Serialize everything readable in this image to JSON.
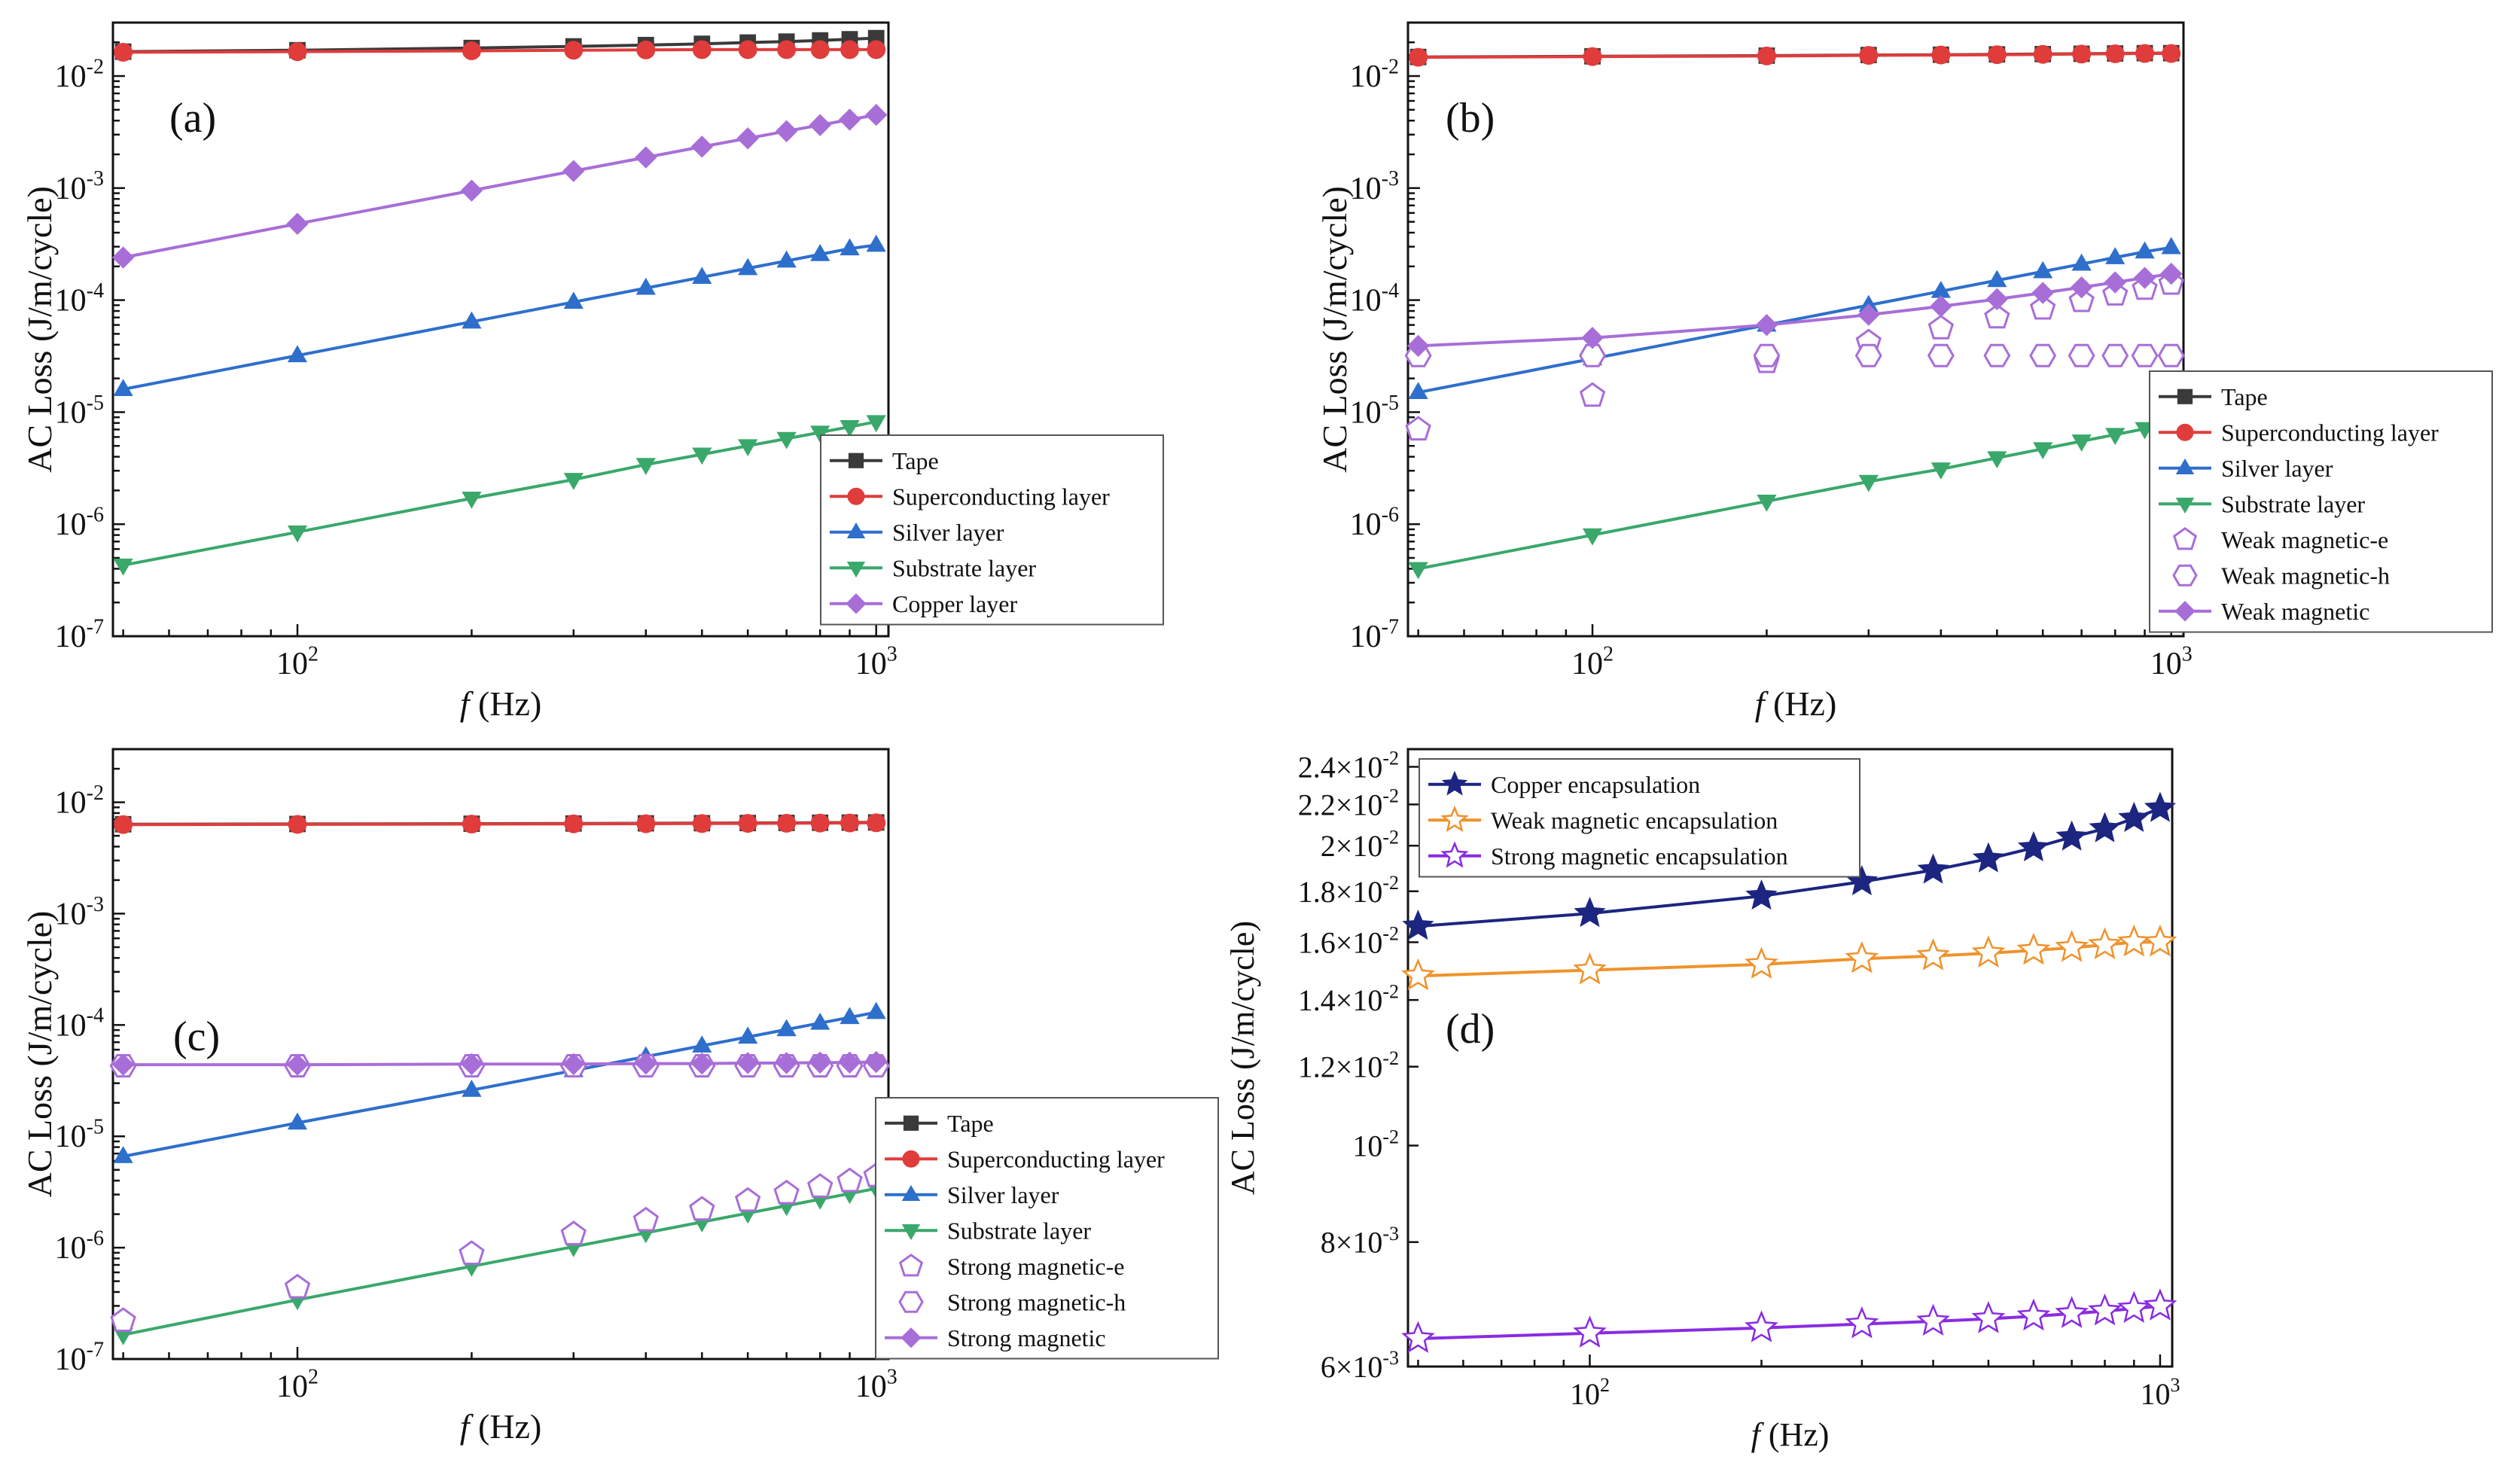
{
  "chart_data": [
    {
      "id": "a",
      "type": "line",
      "panel_label": "(a)",
      "xscale": "log",
      "yscale": "log",
      "xlim": [
        48,
        1050
      ],
      "ylim": [
        1e-07,
        0.03
      ],
      "xlabel_italic": "f",
      "xlabel_rest": " (Hz)",
      "ylabel": "AC Loss (J/m/cycle)",
      "xticks": [
        {
          "v": 100,
          "b": "10",
          "e": "2"
        },
        {
          "v": 1000,
          "b": "10",
          "e": "3"
        }
      ],
      "yticks": [
        {
          "v": 1e-07,
          "b": "10",
          "e": "-7"
        },
        {
          "v": 1e-06,
          "b": "10",
          "e": "-6"
        },
        {
          "v": 1e-05,
          "b": "10",
          "e": "-5"
        },
        {
          "v": 0.0001,
          "b": "10",
          "e": "-4"
        },
        {
          "v": 0.001,
          "b": "10",
          "e": "-3"
        },
        {
          "v": 0.01,
          "b": "10",
          "e": "-2"
        }
      ],
      "legend_position": "lower-right",
      "x": [
        50,
        100,
        200,
        300,
        400,
        500,
        600,
        700,
        800,
        900,
        1000
      ],
      "series": [
        {
          "name": "Tape",
          "color": "#3a3a3a",
          "marker": "square",
          "fill": true,
          "line": true,
          "values": [
            0.0165,
            0.017,
            0.0178,
            0.0184,
            0.0189,
            0.0194,
            0.0199,
            0.0203,
            0.0208,
            0.0213,
            0.0218
          ]
        },
        {
          "name": "Superconducting layer",
          "color": "#e03c3c",
          "marker": "circle",
          "fill": true,
          "line": true,
          "values": [
            0.0163,
            0.0165,
            0.0168,
            0.017,
            0.0171,
            0.0172,
            0.0172,
            0.0172,
            0.0172,
            0.0172,
            0.0172
          ]
        },
        {
          "name": "Silver layer",
          "color": "#2e6fcc",
          "marker": "triangle-up",
          "fill": true,
          "line": true,
          "values": [
            1.6e-05,
            3.2e-05,
            6.4e-05,
            9.6e-05,
            0.000128,
            0.00016,
            0.000192,
            0.000224,
            0.000256,
            0.000288,
            0.00031
          ]
        },
        {
          "name": "Substrate layer",
          "color": "#3aa86b",
          "marker": "triangle-down",
          "fill": true,
          "line": true,
          "values": [
            4.3e-07,
            8.5e-07,
            1.7e-06,
            2.5e-06,
            3.4e-06,
            4.2e-06,
            5e-06,
            5.8e-06,
            6.6e-06,
            7.4e-06,
            8.2e-06
          ]
        },
        {
          "name": "Copper layer",
          "color": "#a86ed8",
          "marker": "diamond",
          "fill": true,
          "line": true,
          "values": [
            0.00024,
            0.00048,
            0.00095,
            0.00142,
            0.00188,
            0.00234,
            0.00278,
            0.00322,
            0.00365,
            0.00408,
            0.0045
          ]
        }
      ]
    },
    {
      "id": "b",
      "type": "line",
      "panel_label": "(b)",
      "xscale": "log",
      "yscale": "log",
      "xlim": [
        48,
        1050
      ],
      "ylim": [
        1e-07,
        0.03
      ],
      "xlabel_italic": "f",
      "xlabel_rest": " (Hz)",
      "ylabel": "AC Loss (J/m/cycle)",
      "xticks": [
        {
          "v": 100,
          "b": "10",
          "e": "2"
        },
        {
          "v": 1000,
          "b": "10",
          "e": "3"
        }
      ],
      "yticks": [
        {
          "v": 1e-07,
          "b": "10",
          "e": "-7"
        },
        {
          "v": 1e-06,
          "b": "10",
          "e": "-6"
        },
        {
          "v": 1e-05,
          "b": "10",
          "e": "-5"
        },
        {
          "v": 0.0001,
          "b": "10",
          "e": "-4"
        },
        {
          "v": 0.001,
          "b": "10",
          "e": "-3"
        },
        {
          "v": 0.01,
          "b": "10",
          "e": "-2"
        }
      ],
      "legend_position": "right",
      "x": [
        50,
        100,
        200,
        300,
        400,
        500,
        600,
        700,
        800,
        900,
        1000
      ],
      "series": [
        {
          "name": "Tape",
          "color": "#3a3a3a",
          "marker": "square",
          "fill": true,
          "line": true,
          "values": [
            0.0148,
            0.015,
            0.0152,
            0.0154,
            0.0155,
            0.0156,
            0.0157,
            0.0158,
            0.0159,
            0.016,
            0.016
          ]
        },
        {
          "name": "Superconducting layer",
          "color": "#e03c3c",
          "marker": "circle",
          "fill": true,
          "line": true,
          "values": [
            0.0147,
            0.0149,
            0.0151,
            0.0153,
            0.0154,
            0.0155,
            0.0156,
            0.0157,
            0.0158,
            0.0159,
            0.0159
          ]
        },
        {
          "name": "Silver layer",
          "color": "#2e6fcc",
          "marker": "triangle-up",
          "fill": true,
          "line": true,
          "values": [
            1.5e-05,
            3e-05,
            6e-05,
            9e-05,
            0.00012,
            0.00015,
            0.00018,
            0.00021,
            0.00024,
            0.00027,
            0.000295
          ]
        },
        {
          "name": "Substrate layer",
          "color": "#3aa86b",
          "marker": "triangle-down",
          "fill": true,
          "line": true,
          "values": [
            4e-07,
            8e-07,
            1.6e-06,
            2.4e-06,
            3.1e-06,
            3.9e-06,
            4.7e-06,
            5.5e-06,
            6.3e-06,
            7.1e-06,
            7.8e-06
          ]
        },
        {
          "name": "Weak magnetic-e",
          "color": "#a86ed8",
          "marker": "pentagon",
          "fill": false,
          "line": false,
          "values": [
            7e-06,
            1.4e-05,
            2.8e-05,
            4.2e-05,
            5.6e-05,
            7e-05,
            8.4e-05,
            9.8e-05,
            0.000112,
            0.000126,
            0.00014
          ]
        },
        {
          "name": "Weak magnetic-h",
          "color": "#a86ed8",
          "marker": "hexagon",
          "fill": false,
          "line": false,
          "values": [
            3.2e-05,
            3.2e-05,
            3.2e-05,
            3.2e-05,
            3.2e-05,
            3.2e-05,
            3.2e-05,
            3.2e-05,
            3.2e-05,
            3.2e-05,
            3.2e-05
          ]
        },
        {
          "name": "Weak magnetic",
          "color": "#a86ed8",
          "marker": "diamond",
          "fill": true,
          "line": true,
          "values": [
            3.9e-05,
            4.6e-05,
            6e-05,
            7.4e-05,
            8.8e-05,
            0.000102,
            0.000116,
            0.00013,
            0.000144,
            0.000158,
            0.000172
          ]
        }
      ]
    },
    {
      "id": "c",
      "type": "line",
      "panel_label": "(c)",
      "xscale": "log",
      "yscale": "log",
      "xlim": [
        48,
        1050
      ],
      "ylim": [
        1e-07,
        0.03
      ],
      "xlabel_italic": "f",
      "xlabel_rest": " (Hz)",
      "ylabel": "AC Loss (J/m/cycle)",
      "xticks": [
        {
          "v": 100,
          "b": "10",
          "e": "2"
        },
        {
          "v": 1000,
          "b": "10",
          "e": "3"
        }
      ],
      "yticks": [
        {
          "v": 1e-07,
          "b": "10",
          "e": "-7"
        },
        {
          "v": 1e-06,
          "b": "10",
          "e": "-6"
        },
        {
          "v": 1e-05,
          "b": "10",
          "e": "-5"
        },
        {
          "v": 0.0001,
          "b": "10",
          "e": "-4"
        },
        {
          "v": 0.001,
          "b": "10",
          "e": "-3"
        },
        {
          "v": 0.01,
          "b": "10",
          "e": "-2"
        }
      ],
      "legend_position": "right",
      "x": [
        50,
        100,
        200,
        300,
        400,
        500,
        600,
        700,
        800,
        900,
        1000
      ],
      "series": [
        {
          "name": "Tape",
          "color": "#3a3a3a",
          "marker": "square",
          "fill": true,
          "line": true,
          "values": [
            0.00635,
            0.00638,
            0.00642,
            0.00645,
            0.00647,
            0.00649,
            0.00651,
            0.00653,
            0.00655,
            0.00657,
            0.00659
          ]
        },
        {
          "name": "Superconducting layer",
          "color": "#e03c3c",
          "marker": "circle",
          "fill": true,
          "line": true,
          "values": [
            0.0063,
            0.00633,
            0.00637,
            0.0064,
            0.00642,
            0.00644,
            0.00646,
            0.00648,
            0.0065,
            0.00652,
            0.00654
          ]
        },
        {
          "name": "Silver layer",
          "color": "#2e6fcc",
          "marker": "triangle-up",
          "fill": true,
          "line": true,
          "values": [
            6.6e-06,
            1.32e-05,
            2.6e-05,
            3.9e-05,
            5.2e-05,
            6.5e-05,
            7.8e-05,
            9.1e-05,
            0.000104,
            0.000117,
            0.00013
          ]
        },
        {
          "name": "Substrate layer",
          "color": "#3aa86b",
          "marker": "triangle-down",
          "fill": true,
          "line": true,
          "values": [
            1.65e-07,
            3.4e-07,
            6.8e-07,
            1.02e-06,
            1.36e-06,
            1.7e-06,
            2.04e-06,
            2.38e-06,
            2.72e-06,
            3.06e-06,
            3.4e-06
          ]
        },
        {
          "name": "Strong magnetic-e",
          "color": "#a86ed8",
          "marker": "pentagon",
          "fill": false,
          "line": false,
          "values": [
            2.2e-07,
            4.4e-07,
            8.8e-07,
            1.32e-06,
            1.76e-06,
            2.2e-06,
            2.64e-06,
            3.08e-06,
            3.52e-06,
            3.96e-06,
            4.4e-06
          ]
        },
        {
          "name": "Strong magnetic-h",
          "color": "#a86ed8",
          "marker": "hexagon",
          "fill": false,
          "line": false,
          "values": [
            4.3e-05,
            4.3e-05,
            4.3e-05,
            4.3e-05,
            4.3e-05,
            4.3e-05,
            4.3e-05,
            4.3e-05,
            4.3e-05,
            4.3e-05,
            4.3e-05
          ]
        },
        {
          "name": "Strong magnetic",
          "color": "#a86ed8",
          "marker": "diamond",
          "fill": true,
          "line": true,
          "values": [
            4.4e-05,
            4.4e-05,
            4.45e-05,
            4.45e-05,
            4.5e-05,
            4.5e-05,
            4.55e-05,
            4.55e-05,
            4.6e-05,
            4.6e-05,
            4.65e-05
          ]
        }
      ]
    },
    {
      "id": "d",
      "type": "line",
      "panel_label": "(d)",
      "xscale": "log",
      "yscale": "log",
      "xlim": [
        48,
        1050
      ],
      "ylim": [
        0.006,
        0.025
      ],
      "xlabel_italic": "f",
      "xlabel_rest": " (Hz)",
      "ylabel": "AC Loss (J/m/cycle)",
      "xticks": [
        {
          "v": 100,
          "b": "10",
          "e": "2"
        },
        {
          "v": 1000,
          "b": "10",
          "e": "3"
        }
      ],
      "yticks": [
        {
          "v": 0.006,
          "b": "6×10",
          "e": "-3"
        },
        {
          "v": 0.008,
          "b": "8×10",
          "e": "-3"
        },
        {
          "v": 0.01,
          "b": "10",
          "e": "-2"
        },
        {
          "v": 0.012,
          "b": "1.2×10",
          "e": "-2"
        },
        {
          "v": 0.014,
          "b": "1.4×10",
          "e": "-2"
        },
        {
          "v": 0.016,
          "b": "1.6×10",
          "e": "-2"
        },
        {
          "v": 0.018,
          "b": "1.8×10",
          "e": "-2"
        },
        {
          "v": 0.02,
          "b": "2×10",
          "e": "-2"
        },
        {
          "v": 0.022,
          "b": "2.2×10",
          "e": "-2"
        },
        {
          "v": 0.024,
          "b": "2.4×10",
          "e": "-2"
        }
      ],
      "legend_position": "top-left",
      "x": [
        50,
        100,
        200,
        300,
        400,
        500,
        600,
        700,
        800,
        900,
        1000
      ],
      "series": [
        {
          "name": "Copper encapsulation",
          "color": "#1c2580",
          "marker": "star",
          "fill": true,
          "line": true,
          "values": [
            0.0166,
            0.0171,
            0.0178,
            0.0184,
            0.0189,
            0.0194,
            0.0199,
            0.0204,
            0.0208,
            0.0213,
            0.0218
          ]
        },
        {
          "name": "Weak magnetic encapsulation",
          "color": "#f0922b",
          "marker": "star",
          "fill": false,
          "line": true,
          "values": [
            0.0148,
            0.015,
            0.0152,
            0.0154,
            0.0155,
            0.0156,
            0.0157,
            0.0158,
            0.0159,
            0.016,
            0.016
          ]
        },
        {
          "name": "Strong magnetic encapsulation",
          "color": "#8a2be2",
          "marker": "star",
          "fill": false,
          "line": true,
          "values": [
            0.0064,
            0.00648,
            0.00656,
            0.00662,
            0.00666,
            0.0067,
            0.00674,
            0.00678,
            0.00682,
            0.00686,
            0.0069
          ]
        }
      ]
    }
  ]
}
